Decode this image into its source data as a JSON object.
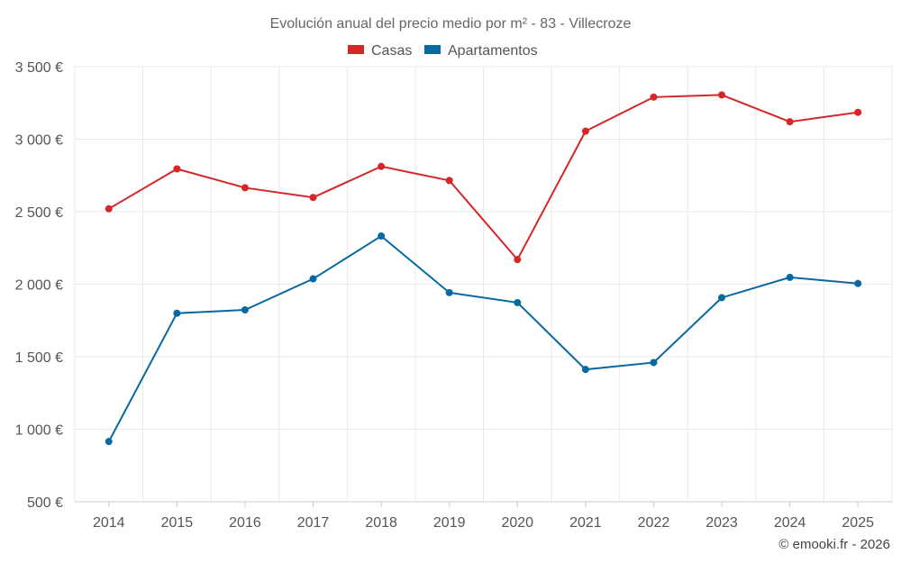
{
  "chart_data": {
    "type": "line",
    "title": "Evolución anual del precio medio por m² - 83 - Villecroze",
    "categories": [
      "2014",
      "2015",
      "2016",
      "2017",
      "2018",
      "2019",
      "2020",
      "2021",
      "2022",
      "2023",
      "2024",
      "2025"
    ],
    "series": [
      {
        "name": "Casas",
        "color": "#d62728",
        "values": [
          2520,
          2795,
          2665,
          2598,
          2812,
          2715,
          2170,
          3055,
          3290,
          3305,
          3120,
          3185
        ]
      },
      {
        "name": "Apartamentos",
        "color": "#0868a0",
        "values": [
          915,
          1800,
          1823,
          2037,
          2332,
          1942,
          1873,
          1412,
          1460,
          1907,
          2047,
          2005
        ]
      }
    ],
    "ylim": [
      500,
      3500
    ],
    "yticks": [
      500,
      1000,
      1500,
      2000,
      2500,
      3000,
      3500
    ],
    "ytick_labels": [
      "500 €",
      "1 000 €",
      "1 500 €",
      "2 000 €",
      "2 500 €",
      "3 000 €",
      "3 500 €"
    ],
    "xlabel": "",
    "ylabel": "",
    "grid": true,
    "legend_position": "top-center"
  },
  "credit": "© emooki.fr - 2026"
}
